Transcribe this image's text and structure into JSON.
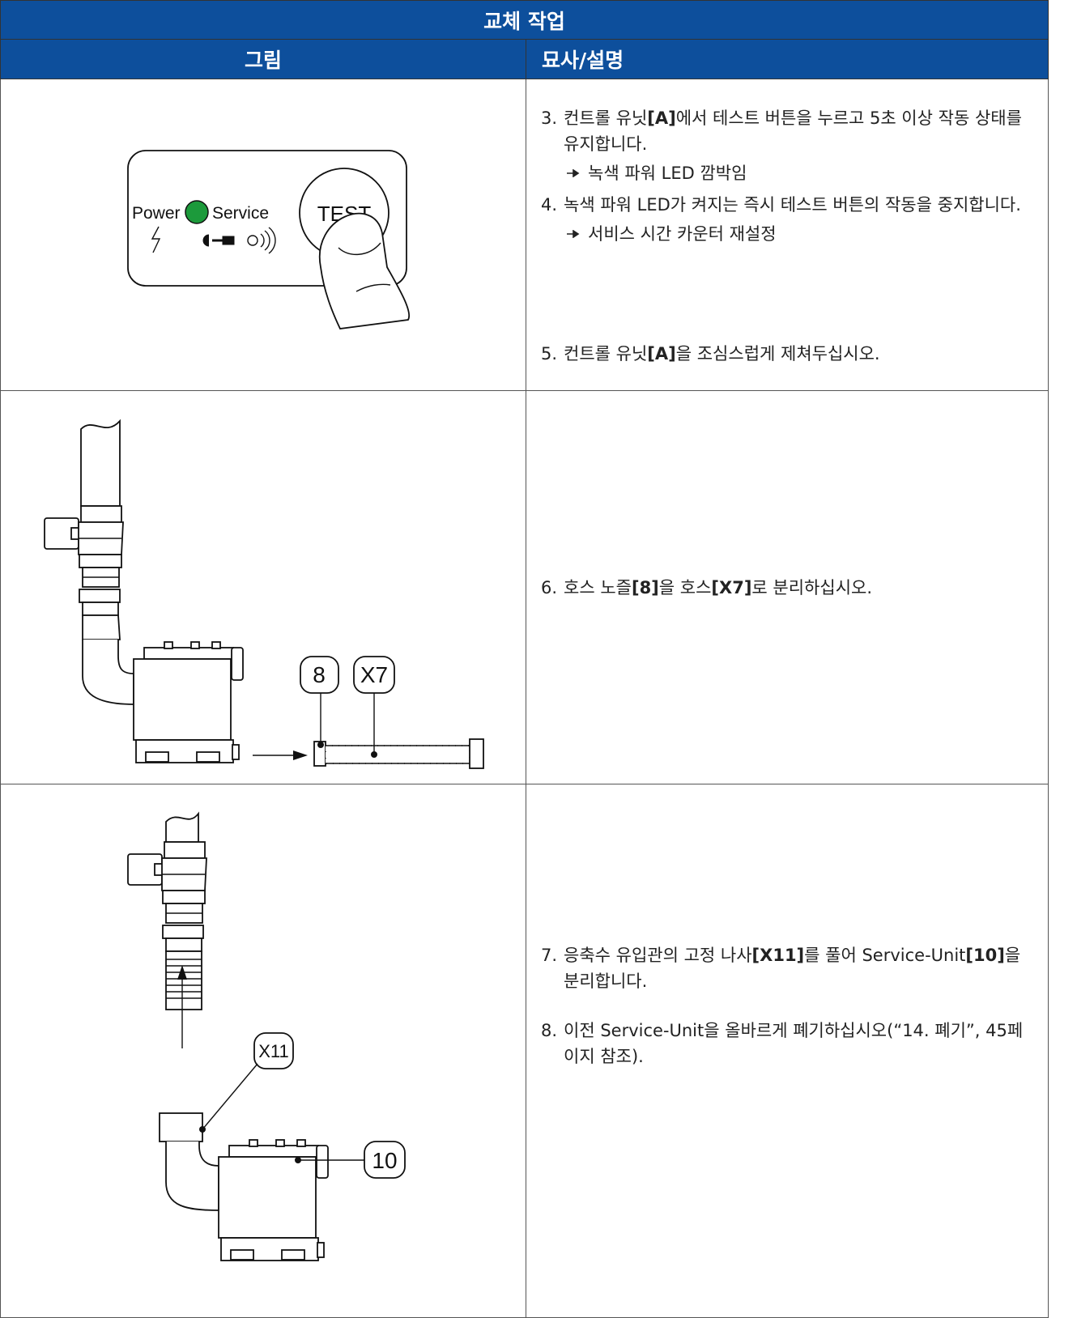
{
  "title": "교체 작업",
  "columns": [
    "그림",
    "묘사/설명"
  ],
  "rows": [
    {
      "figure_labels": [
        "Power",
        "Service",
        "TEST"
      ],
      "steps": [
        {
          "number": "3.",
          "text": [
            "컨트롤 유닛",
            "[A]",
            "에서 테스트 버튼을 누르고 5초 이상 작동 상태를 유지합니다."
          ],
          "result": "녹색 파워 LED 깜박임"
        },
        {
          "number": "4.",
          "text": [
            "녹색 파워 LED가 켜지는 즉시 테스트 버튼의 작동을 중지합니다."
          ],
          "result": "서비스 시간 카운터 재설정"
        },
        {
          "number": "5.",
          "text": [
            "컨트롤 유닛",
            "[A]",
            "을 조심스럽게 제쳐두십시오."
          ]
        }
      ]
    },
    {
      "figure_labels": [
        "8",
        "X7"
      ],
      "steps": [
        {
          "number": "6.",
          "text": [
            "호스 노즐",
            "[8]",
            "을 호스",
            "[X7]",
            "로 분리하십시오."
          ]
        }
      ]
    },
    {
      "figure_labels": [
        "X11",
        "10"
      ],
      "steps": [
        {
          "number": "7.",
          "text": [
            "응축수 유입관의 고정 나사",
            "[X11]",
            "를 풀어 Service-Unit",
            "[10]",
            "을 분리합니다."
          ]
        },
        {
          "number": "8.",
          "text": [
            "이전 Service-Unit을 올바르게 폐기하십시오(“14. 폐기”, 45페이지 참조)."
          ]
        }
      ]
    }
  ]
}
